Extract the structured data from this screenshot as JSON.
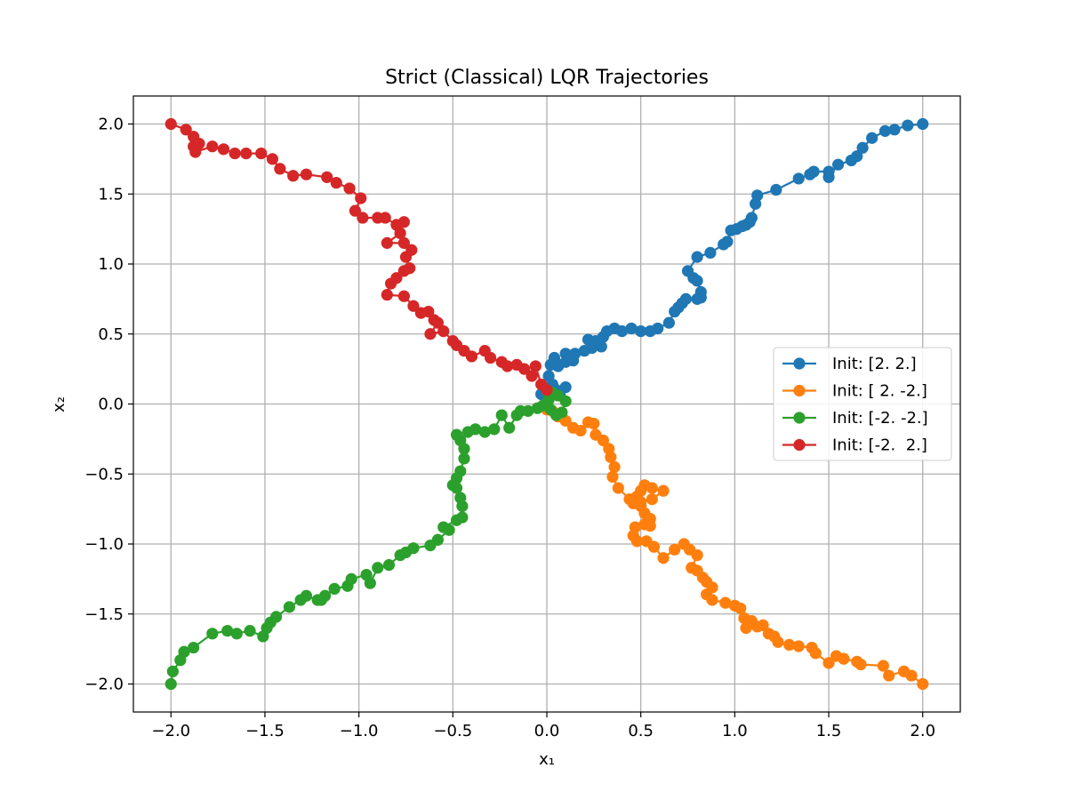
{
  "chart_data": {
    "type": "line",
    "title": "Strict (Classical) LQR Trajectories",
    "xlabel": "x₁",
    "ylabel": "x₂",
    "xlim": [
      -2.2,
      2.2
    ],
    "ylim": [
      -2.2,
      2.2
    ],
    "xticks": [
      -2.0,
      -1.5,
      -1.0,
      -0.5,
      0.0,
      0.5,
      1.0,
      1.5,
      2.0
    ],
    "yticks": [
      -2.0,
      -1.5,
      -1.0,
      -0.5,
      0.0,
      0.5,
      1.0,
      1.5,
      2.0
    ],
    "xtick_labels": [
      "−2.0",
      "−1.5",
      "−1.0",
      "−0.5",
      "0.0",
      "0.5",
      "1.0",
      "1.5",
      "2.0"
    ],
    "ytick_labels": [
      "−2.0",
      "−1.5",
      "−1.0",
      "−0.5",
      "0.0",
      "0.5",
      "1.0",
      "1.5",
      "2.0"
    ],
    "grid": true,
    "legend_position": "center-right",
    "markers": "circle",
    "series": [
      {
        "name": "Init: [2. 2.]",
        "color": "#1f77b4",
        "points": [
          [
            2.0,
            2.0
          ],
          [
            1.92,
            1.99
          ],
          [
            1.85,
            1.96
          ],
          [
            1.8,
            1.95
          ],
          [
            1.73,
            1.9
          ],
          [
            1.68,
            1.83
          ],
          [
            1.65,
            1.77
          ],
          [
            1.62,
            1.74
          ],
          [
            1.55,
            1.71
          ],
          [
            1.5,
            1.62
          ],
          [
            1.5,
            1.66
          ],
          [
            1.42,
            1.66
          ],
          [
            1.4,
            1.64
          ],
          [
            1.34,
            1.61
          ],
          [
            1.22,
            1.53
          ],
          [
            1.12,
            1.49
          ],
          [
            1.11,
            1.43
          ],
          [
            1.09,
            1.33
          ],
          [
            1.08,
            1.3
          ],
          [
            1.06,
            1.28
          ],
          [
            1.04,
            1.27
          ],
          [
            1.01,
            1.25
          ],
          [
            0.98,
            1.24
          ],
          [
            0.96,
            1.16
          ],
          [
            0.94,
            1.14
          ],
          [
            0.87,
            1.08
          ],
          [
            0.8,
            1.05
          ],
          [
            0.75,
            0.95
          ],
          [
            0.78,
            0.9
          ],
          [
            0.8,
            0.88
          ],
          [
            0.82,
            0.8
          ],
          [
            0.82,
            0.76
          ],
          [
            0.8,
            0.75
          ],
          [
            0.74,
            0.75
          ],
          [
            0.72,
            0.72
          ],
          [
            0.7,
            0.69
          ],
          [
            0.68,
            0.66
          ],
          [
            0.65,
            0.58
          ],
          [
            0.59,
            0.54
          ],
          [
            0.55,
            0.52
          ],
          [
            0.5,
            0.52
          ],
          [
            0.45,
            0.54
          ],
          [
            0.4,
            0.52
          ],
          [
            0.36,
            0.54
          ],
          [
            0.32,
            0.52
          ],
          [
            0.3,
            0.48
          ],
          [
            0.29,
            0.41
          ],
          [
            0.26,
            0.45
          ],
          [
            0.22,
            0.46
          ],
          [
            0.24,
            0.4
          ],
          [
            0.2,
            0.38
          ],
          [
            0.15,
            0.36
          ],
          [
            0.1,
            0.36
          ],
          [
            0.14,
            0.31
          ],
          [
            0.1,
            0.3
          ],
          [
            0.04,
            0.33
          ],
          [
            0.06,
            0.27
          ],
          [
            0.02,
            0.28
          ],
          [
            0.01,
            0.2
          ],
          [
            0.03,
            0.14
          ],
          [
            0.05,
            0.1
          ],
          [
            0.1,
            0.12
          ],
          [
            0.07,
            0.06
          ],
          [
            0.02,
            0.07
          ],
          [
            -0.03,
            0.07
          ]
        ]
      },
      {
        "name": "Init: [ 2. -2.]",
        "color": "#ff7f0e",
        "points": [
          [
            2.0,
            -2.0
          ],
          [
            1.94,
            -1.94
          ],
          [
            1.9,
            -1.91
          ],
          [
            1.82,
            -1.94
          ],
          [
            1.79,
            -1.87
          ],
          [
            1.67,
            -1.86
          ],
          [
            1.65,
            -1.84
          ],
          [
            1.58,
            -1.82
          ],
          [
            1.54,
            -1.8
          ],
          [
            1.5,
            -1.85
          ],
          [
            1.43,
            -1.78
          ],
          [
            1.41,
            -1.74
          ],
          [
            1.34,
            -1.73
          ],
          [
            1.29,
            -1.72
          ],
          [
            1.23,
            -1.7
          ],
          [
            1.21,
            -1.66
          ],
          [
            1.18,
            -1.64
          ],
          [
            1.15,
            -1.58
          ],
          [
            1.12,
            -1.59
          ],
          [
            1.09,
            -1.55
          ],
          [
            1.06,
            -1.6
          ],
          [
            1.05,
            -1.53
          ],
          [
            1.03,
            -1.46
          ],
          [
            1.0,
            -1.44
          ],
          [
            0.95,
            -1.42
          ],
          [
            0.88,
            -1.4
          ],
          [
            0.85,
            -1.36
          ],
          [
            0.88,
            -1.31
          ],
          [
            0.85,
            -1.27
          ],
          [
            0.83,
            -1.24
          ],
          [
            0.8,
            -1.19
          ],
          [
            0.77,
            -1.17
          ],
          [
            0.8,
            -1.08
          ],
          [
            0.76,
            -1.04
          ],
          [
            0.73,
            -1.0
          ],
          [
            0.68,
            -1.04
          ],
          [
            0.62,
            -1.1
          ],
          [
            0.57,
            -1.02
          ],
          [
            0.53,
            -0.98
          ],
          [
            0.48,
            -0.98
          ],
          [
            0.46,
            -0.94
          ],
          [
            0.47,
            -0.88
          ],
          [
            0.52,
            -0.86
          ],
          [
            0.55,
            -0.87
          ],
          [
            0.55,
            -0.82
          ],
          [
            0.52,
            -0.78
          ],
          [
            0.5,
            -0.73
          ],
          [
            0.46,
            -0.71
          ],
          [
            0.48,
            -0.66
          ],
          [
            0.5,
            -0.62
          ],
          [
            0.52,
            -0.58
          ],
          [
            0.56,
            -0.6
          ],
          [
            0.62,
            -0.62
          ],
          [
            0.56,
            -0.68
          ],
          [
            0.5,
            -0.7
          ],
          [
            0.44,
            -0.68
          ],
          [
            0.38,
            -0.6
          ],
          [
            0.35,
            -0.52
          ],
          [
            0.36,
            -0.45
          ],
          [
            0.34,
            -0.38
          ],
          [
            0.33,
            -0.32
          ],
          [
            0.3,
            -0.26
          ],
          [
            0.26,
            -0.22
          ],
          [
            0.25,
            -0.14
          ],
          [
            0.22,
            -0.13
          ],
          [
            0.18,
            -0.19
          ],
          [
            0.14,
            -0.17
          ],
          [
            0.1,
            -0.12
          ],
          [
            0.06,
            -0.09
          ],
          [
            0.03,
            -0.05
          ],
          [
            0.0,
            -0.04
          ]
        ]
      },
      {
        "name": "Init: [-2. -2.]",
        "color": "#2ca02c",
        "points": [
          [
            -2.0,
            -2.0
          ],
          [
            -1.99,
            -1.91
          ],
          [
            -1.95,
            -1.83
          ],
          [
            -1.93,
            -1.77
          ],
          [
            -1.88,
            -1.74
          ],
          [
            -1.78,
            -1.64
          ],
          [
            -1.7,
            -1.62
          ],
          [
            -1.65,
            -1.64
          ],
          [
            -1.58,
            -1.62
          ],
          [
            -1.51,
            -1.66
          ],
          [
            -1.49,
            -1.6
          ],
          [
            -1.47,
            -1.56
          ],
          [
            -1.44,
            -1.52
          ],
          [
            -1.37,
            -1.45
          ],
          [
            -1.31,
            -1.4
          ],
          [
            -1.28,
            -1.37
          ],
          [
            -1.22,
            -1.4
          ],
          [
            -1.2,
            -1.4
          ],
          [
            -1.18,
            -1.37
          ],
          [
            -1.13,
            -1.32
          ],
          [
            -1.06,
            -1.3
          ],
          [
            -1.04,
            -1.25
          ],
          [
            -0.96,
            -1.22
          ],
          [
            -0.94,
            -1.28
          ],
          [
            -0.9,
            -1.17
          ],
          [
            -0.84,
            -1.15
          ],
          [
            -0.78,
            -1.08
          ],
          [
            -0.75,
            -1.06
          ],
          [
            -0.71,
            -1.03
          ],
          [
            -0.62,
            -1.01
          ],
          [
            -0.58,
            -0.97
          ],
          [
            -0.52,
            -0.9
          ],
          [
            -0.55,
            -0.88
          ],
          [
            -0.48,
            -0.83
          ],
          [
            -0.45,
            -0.81
          ],
          [
            -0.45,
            -0.73
          ],
          [
            -0.46,
            -0.67
          ],
          [
            -0.48,
            -0.6
          ],
          [
            -0.5,
            -0.58
          ],
          [
            -0.48,
            -0.53
          ],
          [
            -0.46,
            -0.48
          ],
          [
            -0.44,
            -0.39
          ],
          [
            -0.44,
            -0.32
          ],
          [
            -0.46,
            -0.26
          ],
          [
            -0.48,
            -0.22
          ],
          [
            -0.42,
            -0.2
          ],
          [
            -0.38,
            -0.18
          ],
          [
            -0.33,
            -0.2
          ],
          [
            -0.28,
            -0.18
          ],
          [
            -0.24,
            -0.08
          ],
          [
            -0.2,
            -0.17
          ],
          [
            -0.16,
            -0.08
          ],
          [
            -0.14,
            -0.05
          ],
          [
            -0.1,
            -0.05
          ],
          [
            -0.05,
            -0.03
          ],
          [
            -0.02,
            -0.01
          ],
          [
            0.01,
            0.03
          ],
          [
            0.03,
            0.08
          ],
          [
            0.06,
            0.06
          ],
          [
            0.1,
            0.02
          ],
          [
            0.08,
            -0.06
          ],
          [
            0.05,
            -0.08
          ],
          [
            0.02,
            -0.04
          ],
          [
            0.0,
            0.1
          ]
        ]
      },
      {
        "name": "Init: [-2.  2.]",
        "color": "#d62728",
        "points": [
          [
            -2.0,
            2.0
          ],
          [
            -1.92,
            1.96
          ],
          [
            -1.88,
            1.91
          ],
          [
            -1.85,
            1.86
          ],
          [
            -1.88,
            1.84
          ],
          [
            -1.87,
            1.8
          ],
          [
            -1.78,
            1.84
          ],
          [
            -1.72,
            1.82
          ],
          [
            -1.66,
            1.79
          ],
          [
            -1.6,
            1.79
          ],
          [
            -1.52,
            1.79
          ],
          [
            -1.46,
            1.75
          ],
          [
            -1.42,
            1.68
          ],
          [
            -1.35,
            1.63
          ],
          [
            -1.28,
            1.64
          ],
          [
            -1.17,
            1.62
          ],
          [
            -1.12,
            1.58
          ],
          [
            -1.05,
            1.54
          ],
          [
            -0.99,
            1.47
          ],
          [
            -1.02,
            1.38
          ],
          [
            -0.98,
            1.33
          ],
          [
            -0.9,
            1.33
          ],
          [
            -0.86,
            1.33
          ],
          [
            -0.8,
            1.28
          ],
          [
            -0.76,
            1.3
          ],
          [
            -0.78,
            1.22
          ],
          [
            -0.85,
            1.15
          ],
          [
            -0.76,
            1.15
          ],
          [
            -0.72,
            1.1
          ],
          [
            -0.75,
            1.05
          ],
          [
            -0.73,
            0.97
          ],
          [
            -0.76,
            0.95
          ],
          [
            -0.8,
            0.9
          ],
          [
            -0.83,
            0.86
          ],
          [
            -0.85,
            0.78
          ],
          [
            -0.76,
            0.77
          ],
          [
            -0.71,
            0.7
          ],
          [
            -0.67,
            0.65
          ],
          [
            -0.63,
            0.66
          ],
          [
            -0.6,
            0.6
          ],
          [
            -0.58,
            0.58
          ],
          [
            -0.62,
            0.5
          ],
          [
            -0.55,
            0.52
          ],
          [
            -0.5,
            0.45
          ],
          [
            -0.48,
            0.42
          ],
          [
            -0.44,
            0.38
          ],
          [
            -0.4,
            0.34
          ],
          [
            -0.33,
            0.38
          ],
          [
            -0.3,
            0.33
          ],
          [
            -0.24,
            0.3
          ],
          [
            -0.21,
            0.27
          ],
          [
            -0.16,
            0.28
          ],
          [
            -0.12,
            0.25
          ],
          [
            -0.08,
            0.2
          ],
          [
            -0.06,
            0.27
          ],
          [
            -0.03,
            0.14
          ],
          [
            0.0,
            0.1
          ]
        ]
      }
    ]
  }
}
